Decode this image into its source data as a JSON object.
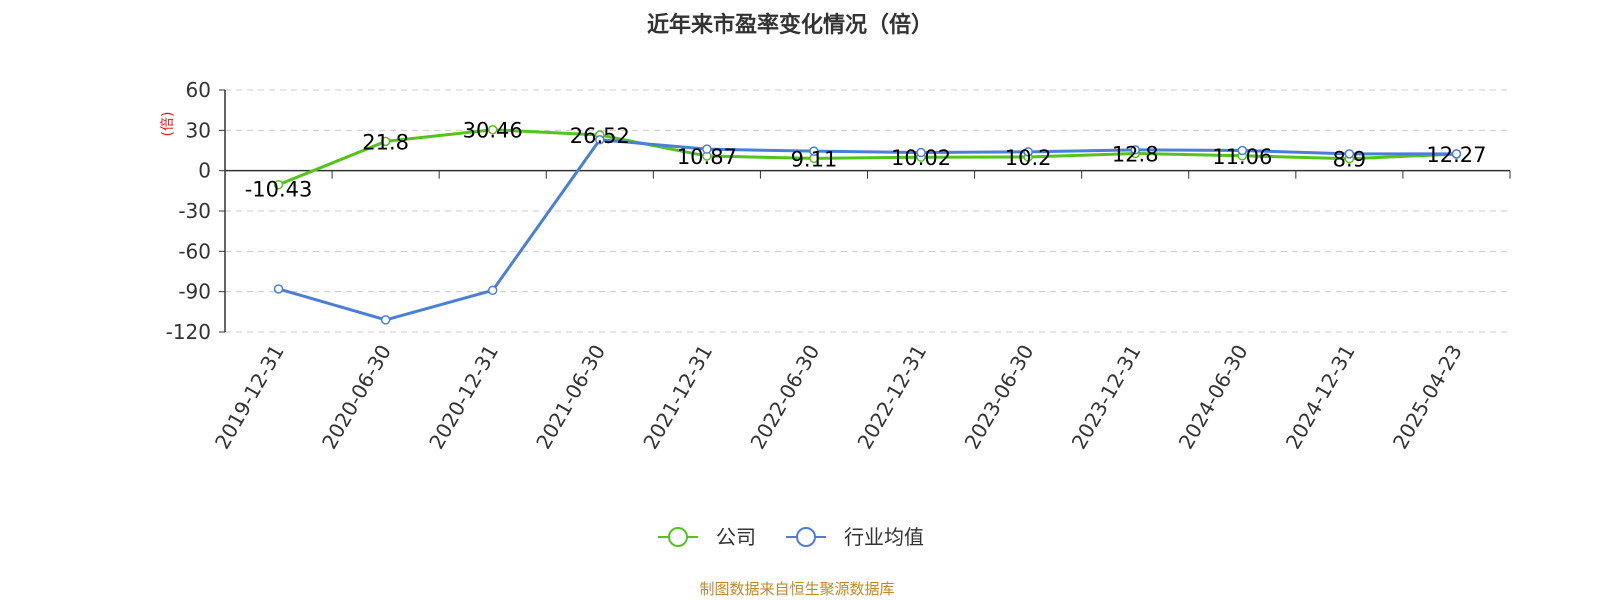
{
  "colors": {
    "company": "#52c41a",
    "industry": "#4a7fd9",
    "source": "#c08a2a",
    "unit": "#e02020",
    "grid": "#cccccc",
    "axis": "#333333"
  },
  "legend": {
    "company_label": "公司",
    "industry_label": "行业均值"
  },
  "source_note": "制图数据来自恒生聚源数据库",
  "chart_data": {
    "type": "line",
    "title": "近年来市盈率变化情况（倍）",
    "ylabel": "(倍)",
    "xlabel": "",
    "ylim": [
      -120,
      60
    ],
    "yticks": [
      60,
      30,
      0,
      -30,
      -60,
      -90,
      -120
    ],
    "grid": true,
    "legend_position": "bottom-center",
    "categories": [
      "2019-12-31",
      "2020-06-30",
      "2020-12-31",
      "2021-06-30",
      "2021-12-31",
      "2022-06-30",
      "2022-12-31",
      "2023-06-30",
      "2023-12-31",
      "2024-06-30",
      "2024-12-31",
      "2025-04-23"
    ],
    "series": [
      {
        "name": "公司",
        "values": [
          -10.43,
          21.8,
          30.46,
          26.52,
          10.87,
          9.11,
          10.02,
          10.2,
          12.8,
          11.06,
          8.9,
          12.27
        ],
        "labels": [
          "-10.43",
          "21.8",
          "30.46",
          "26.52",
          "10.87",
          "9.11",
          "10.02",
          "10.2",
          "12.8",
          "11.06",
          "8.9",
          "12.27"
        ]
      },
      {
        "name": "行业均值",
        "values": [
          -88,
          -111,
          -89,
          23,
          16,
          14.5,
          13.5,
          14,
          15.5,
          15,
          12.5,
          12.5
        ]
      }
    ]
  }
}
